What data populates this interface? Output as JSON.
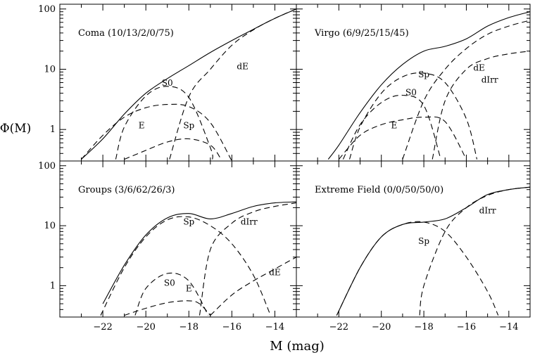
{
  "figure": {
    "ylabel": "Φ(M)",
    "xlabel": "M (mag)"
  },
  "chart_data": [
    {
      "type": "line",
      "title": "Coma (10/13/2/0/75)",
      "xlim": [
        -24,
        -13
      ],
      "ylim": [
        0.3,
        120
      ],
      "yscale": "log",
      "xticks": [
        -22,
        -20,
        -18,
        -16,
        -14
      ],
      "yticks": [
        1,
        10,
        100
      ],
      "series": [
        {
          "name": "total",
          "style": "solid",
          "x": [
            -23,
            -22,
            -21,
            -20,
            -19,
            -18,
            -17,
            -16,
            -15,
            -14,
            -13
          ],
          "y": [
            0.32,
            0.7,
            1.8,
            4.0,
            7.0,
            11.5,
            19,
            30,
            46,
            70,
            100
          ]
        },
        {
          "name": "E",
          "style": "dashed",
          "x": [
            -23,
            -22,
            -21,
            -20,
            -19,
            -18,
            -17,
            -16
          ],
          "y": [
            0.32,
            0.8,
            1.6,
            2.3,
            2.6,
            2.4,
            1.3,
            0.3
          ]
        },
        {
          "name": "S0",
          "style": "dashed",
          "x": [
            -21.4,
            -21,
            -20,
            -19,
            -18,
            -17,
            -16.9
          ],
          "y": [
            0.32,
            1.1,
            3.6,
            5.2,
            3.4,
            0.5,
            0.32
          ]
        },
        {
          "name": "Sp",
          "style": "dashed",
          "x": [
            -21,
            -20,
            -19,
            -18,
            -17,
            -16.5
          ],
          "y": [
            0.32,
            0.45,
            0.62,
            0.7,
            0.55,
            0.32
          ]
        },
        {
          "name": "dE",
          "style": "dashed",
          "x": [
            -18.9,
            -18,
            -17,
            -16,
            -15,
            -14,
            -13
          ],
          "y": [
            0.32,
            3.5,
            10,
            25,
            45,
            70,
            100
          ]
        }
      ],
      "labels": [
        {
          "text": "S0",
          "x": -19,
          "y": 5.3
        },
        {
          "text": "E",
          "x": -20.2,
          "y": 1.05
        },
        {
          "text": "Sp",
          "x": -18,
          "y": 1.05
        },
        {
          "text": "dE",
          "x": -15.5,
          "y": 10
        }
      ]
    },
    {
      "type": "line",
      "title": "Virgo (6/9/25/15/45)",
      "xlim": [
        -24,
        -13
      ],
      "ylim": [
        0.3,
        120
      ],
      "yscale": "log",
      "xticks": [
        -22,
        -20,
        -18,
        -16,
        -14
      ],
      "yticks": [
        1,
        10,
        100
      ],
      "series": [
        {
          "name": "total",
          "style": "solid",
          "x": [
            -22.5,
            -22,
            -21,
            -20,
            -19,
            -18,
            -17,
            -16,
            -15,
            -14,
            -13
          ],
          "y": [
            0.32,
            0.55,
            1.9,
            5.5,
            12,
            20,
            24,
            32,
            52,
            72,
            90
          ]
        },
        {
          "name": "E",
          "style": "dashed",
          "x": [
            -22,
            -21,
            -20,
            -19,
            -18,
            -17,
            -16
          ],
          "y": [
            0.32,
            0.8,
            1.2,
            1.45,
            1.6,
            1.35,
            0.32
          ]
        },
        {
          "name": "S0",
          "style": "dashed",
          "x": [
            -21.8,
            -21,
            -20,
            -19,
            -18,
            -17.2
          ],
          "y": [
            0.32,
            1.2,
            2.8,
            3.7,
            2.5,
            0.32
          ]
        },
        {
          "name": "Sp",
          "style": "dashed",
          "x": [
            -21.5,
            -21,
            -20,
            -19,
            -18,
            -17,
            -16,
            -15.5
          ],
          "y": [
            0.32,
            1.1,
            4,
            7.5,
            8.6,
            6,
            1.5,
            0.32
          ]
        },
        {
          "name": "dE",
          "style": "dashed",
          "x": [
            -19,
            -18,
            -17,
            -16,
            -15,
            -14,
            -13
          ],
          "y": [
            0.32,
            3,
            10,
            22,
            38,
            52,
            65
          ]
        },
        {
          "name": "dIrr",
          "style": "dashed",
          "x": [
            -17.6,
            -17,
            -16,
            -15,
            -14,
            -13
          ],
          "y": [
            0.32,
            3,
            10,
            15,
            18,
            20
          ]
        }
      ],
      "labels": [
        {
          "text": "Sp",
          "x": -18,
          "y": 7.3
        },
        {
          "text": "S0",
          "x": -18.6,
          "y": 3.7
        },
        {
          "text": "E",
          "x": -19.4,
          "y": 1.05
        },
        {
          "text": "dE",
          "x": -15.4,
          "y": 9.5
        },
        {
          "text": "dIrr",
          "x": -14.9,
          "y": 6
        }
      ]
    },
    {
      "type": "line",
      "title": "Groups (3/6/62/26/3)",
      "xlim": [
        -24,
        -13
      ],
      "ylim": [
        0.3,
        120
      ],
      "yscale": "log",
      "xticks": [
        -22,
        -20,
        -18,
        -16,
        -14
      ],
      "yticks": [
        1,
        10,
        100
      ],
      "series": [
        {
          "name": "total",
          "style": "solid",
          "x": [
            -22,
            -21,
            -20,
            -19,
            -18,
            -17,
            -16,
            -15,
            -14,
            -13
          ],
          "y": [
            0.5,
            2.2,
            7,
            13.5,
            16,
            13,
            16,
            21,
            24,
            25
          ]
        },
        {
          "name": "E",
          "style": "dashed",
          "x": [
            -21,
            -20,
            -19,
            -18,
            -17.5,
            -17
          ],
          "y": [
            0.32,
            0.42,
            0.52,
            0.56,
            0.5,
            0.32
          ]
        },
        {
          "name": "S0",
          "style": "dashed",
          "x": [
            -20.5,
            -20,
            -19,
            -18,
            -17.1
          ],
          "y": [
            0.32,
            0.9,
            1.6,
            1.2,
            0.32
          ]
        },
        {
          "name": "Sp",
          "style": "dashed",
          "x": [
            -22.1,
            -21,
            -20,
            -19,
            -18,
            -17,
            -16,
            -15,
            -14.2
          ],
          "y": [
            0.32,
            2,
            6.5,
            12.5,
            14,
            10,
            5,
            1.5,
            0.32
          ]
        },
        {
          "name": "dIrr",
          "style": "dashed",
          "x": [
            -17.5,
            -17,
            -16,
            -15,
            -14,
            -13
          ],
          "y": [
            0.32,
            4,
            11,
            17,
            21,
            24
          ]
        },
        {
          "name": "dE",
          "style": "dashed",
          "x": [
            -17,
            -16,
            -15,
            -14,
            -13
          ],
          "y": [
            0.32,
            0.7,
            1.2,
            1.9,
            3
          ]
        }
      ],
      "labels": [
        {
          "text": "Sp",
          "x": -18,
          "y": 10.5
        },
        {
          "text": "dIrr",
          "x": -15.2,
          "y": 10.5
        },
        {
          "text": "dE",
          "x": -14,
          "y": 1.5
        },
        {
          "text": "S0",
          "x": -18.9,
          "y": 1
        },
        {
          "text": "E",
          "x": -18,
          "y": 0.8
        }
      ]
    },
    {
      "type": "line",
      "title": "Extreme Field (0/0/50/50/0)",
      "xlim": [
        -24,
        -13
      ],
      "ylim": [
        0.3,
        120
      ],
      "yscale": "log",
      "xticks": [
        -22,
        -20,
        -18,
        -16,
        -14
      ],
      "yticks": [
        1,
        10,
        100
      ],
      "series": [
        {
          "name": "total",
          "style": "solid",
          "x": [
            -22.1,
            -21,
            -20,
            -19,
            -18,
            -17,
            -16,
            -15,
            -14,
            -13
          ],
          "y": [
            0.32,
            2,
            6.5,
            10.5,
            11.5,
            13,
            20,
            33,
            40,
            44
          ]
        },
        {
          "name": "Sp",
          "style": "dashed",
          "x": [
            -22.1,
            -21,
            -20,
            -19,
            -18,
            -17,
            -16,
            -15,
            -14.5
          ],
          "y": [
            0.32,
            2,
            6.5,
            10.5,
            11.5,
            8,
            3,
            0.8,
            0.32
          ]
        },
        {
          "name": "dIrr",
          "style": "dashed",
          "x": [
            -18.2,
            -18,
            -17,
            -16,
            -15,
            -14,
            -13
          ],
          "y": [
            0.32,
            1,
            8,
            20,
            32,
            40,
            44
          ]
        }
      ],
      "labels": [
        {
          "text": "Sp",
          "x": -18,
          "y": 5
        },
        {
          "text": "dIrr",
          "x": -15,
          "y": 16
        }
      ]
    }
  ]
}
